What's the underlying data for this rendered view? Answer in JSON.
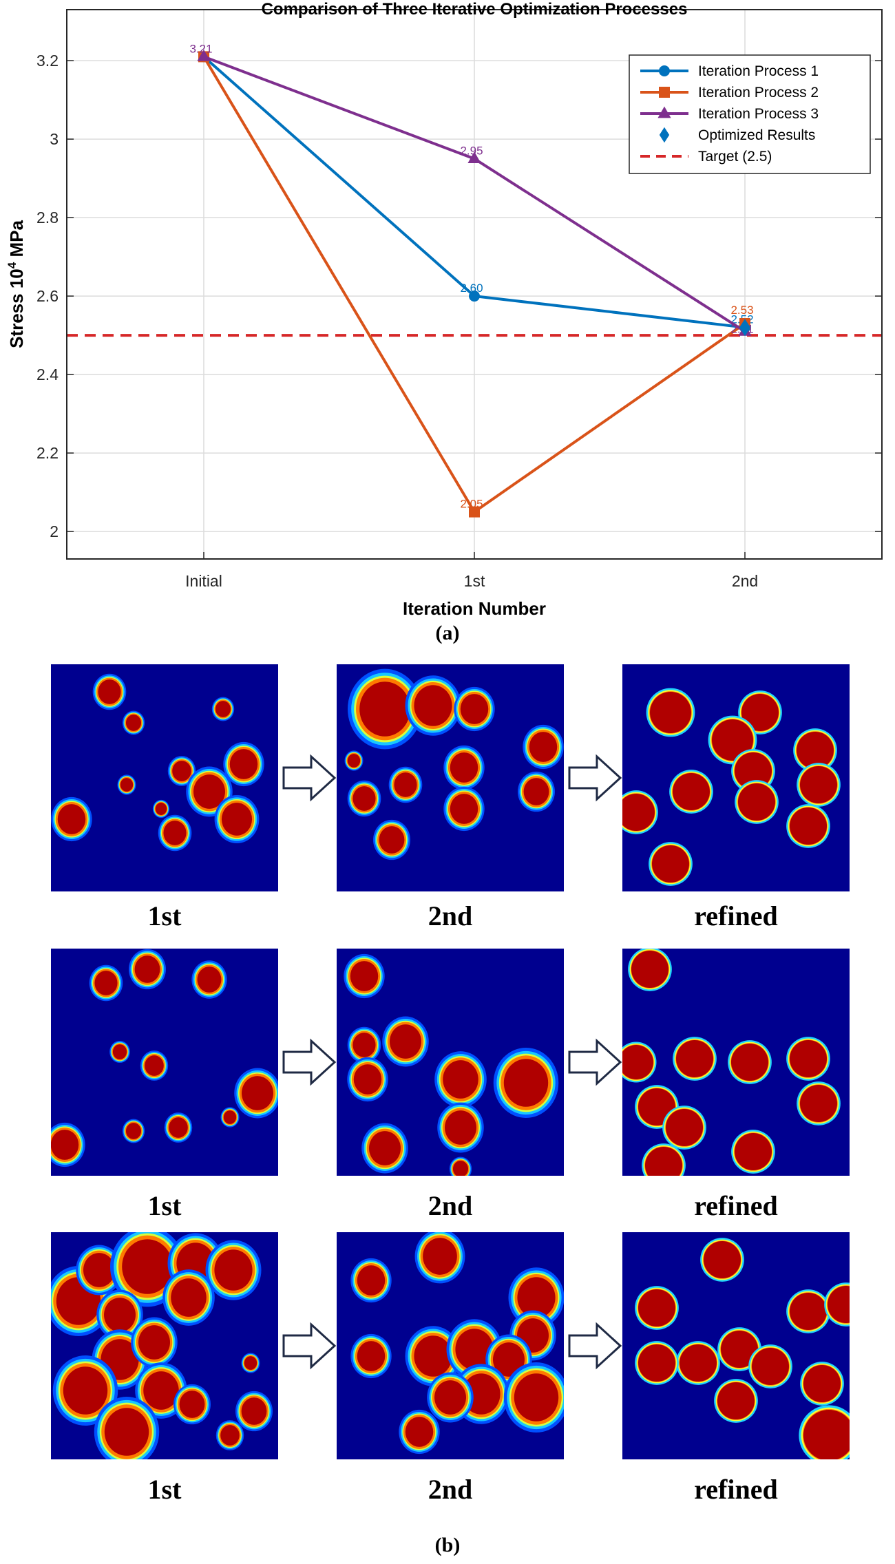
{
  "chart_data": {
    "type": "line",
    "title": "Comparison of Three Iterative Optimization Processes",
    "xlabel": "Iteration Number",
    "ylabel": "Stress 10",
    "ylabel_exponent": "4",
    "ylabel_unit": " MPa",
    "categories": [
      "Initial",
      "1st",
      "2nd"
    ],
    "ylim": [
      1.93,
      3.33
    ],
    "yticks": [
      2,
      2.2,
      2.4,
      2.6,
      2.8,
      3,
      3.2
    ],
    "ytick_labels": [
      "2",
      "2.2",
      "2.4",
      "2.6",
      "2.8",
      "3",
      "3.2"
    ],
    "grid": true,
    "legend_position": "top-right",
    "series": [
      {
        "name": "Iteration Process 1",
        "color": "#0072BD",
        "marker": "circle",
        "values": [
          3.21,
          2.6,
          2.52
        ],
        "labels": [
          "",
          "2.60",
          "2.52"
        ]
      },
      {
        "name": "Iteration Process 2",
        "color": "#D95319",
        "marker": "square",
        "values": [
          3.21,
          2.05,
          2.53
        ],
        "labels": [
          "",
          "2.05",
          "2.53"
        ]
      },
      {
        "name": "Iteration Process 3",
        "color": "#7E2F8E",
        "marker": "triangle",
        "values": [
          3.21,
          2.95,
          2.51
        ],
        "labels": [
          "3.21",
          "2.95",
          "2.51"
        ]
      }
    ],
    "optimized_results": {
      "name": "Optimized Results",
      "color": "#0072BD",
      "marker": "diamond",
      "x": "2nd",
      "value": 2.52
    },
    "target": {
      "name": "Target (2.5)",
      "color": "#D62728",
      "value": 2.5
    }
  },
  "panels": {
    "a_label": "(a)",
    "b_label": "(b)",
    "rows": [
      {
        "labels": [
          "1st",
          "2nd",
          "refined"
        ]
      },
      {
        "labels": [
          "1st",
          "2nd",
          "refined"
        ]
      },
      {
        "labels": [
          "1st",
          "2nd",
          "refined"
        ]
      }
    ]
  },
  "colors": {
    "map_background": "#00008f",
    "blob_core": "#b00000"
  }
}
